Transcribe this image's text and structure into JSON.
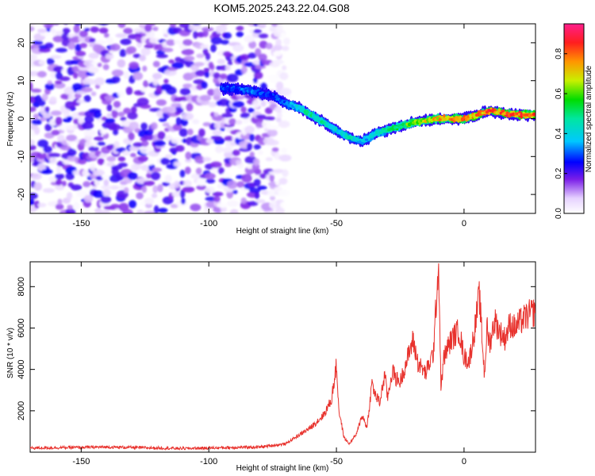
{
  "title": "KOM5.2025.243.22.04.G08",
  "chart_data": [
    {
      "type": "heatmap",
      "xlabel": "Height of straight line (km)",
      "ylabel": "Frequency (Hz)",
      "xlim": [
        -170,
        28
      ],
      "ylim": [
        -25,
        25
      ],
      "xticks": [
        -150,
        -100,
        -50,
        0
      ],
      "yticks": [
        20,
        10,
        0,
        -10,
        -20
      ],
      "colorbar": {
        "label": "Normalized spectral amplitude",
        "range": [
          0.0,
          0.95
        ],
        "ticks": [
          0.0,
          0.2,
          0.4,
          0.6,
          0.8
        ]
      },
      "ridge": {
        "description": "dominant signal frequency vs height",
        "x": [
          -95,
          -85,
          -75,
          -70,
          -65,
          -60,
          -55,
          -50,
          -45,
          -40,
          -35,
          -30,
          -20,
          -10,
          0,
          10,
          20,
          28
        ],
        "y": [
          8,
          7.5,
          6,
          4,
          3,
          1,
          -1,
          -3,
          -5,
          -6,
          -4,
          -3,
          -1,
          0,
          0,
          2,
          1,
          1
        ],
        "amplitude": [
          0.3,
          0.35,
          0.3,
          0.35,
          0.45,
          0.55,
          0.5,
          0.45,
          0.5,
          0.4,
          0.45,
          0.55,
          0.7,
          0.8,
          0.85,
          0.9,
          0.9,
          0.85
        ]
      },
      "noise_region": {
        "x_range": [
          -170,
          -70
        ],
        "amplitude_max": 0.25
      }
    },
    {
      "type": "line",
      "xlabel": "Height of straight line (km)",
      "ylabel": "SNR (10 * v/v)",
      "xlim": [
        -170,
        28
      ],
      "ylim": [
        0,
        9200
      ],
      "xticks": [
        -150,
        -100,
        -50,
        0
      ],
      "yticks": [
        2000,
        4000,
        6000,
        8000
      ],
      "color": "#e8322d",
      "series": [
        {
          "name": "SNR",
          "x": [
            -170,
            -140,
            -110,
            -80,
            -70,
            -65,
            -60,
            -55,
            -52,
            -50,
            -49,
            -47,
            -45,
            -42,
            -40,
            -38,
            -36,
            -35,
            -33,
            -31,
            -30,
            -28,
            -27,
            -25,
            -22,
            -20,
            -18,
            -15,
            -12,
            -10,
            -9,
            -8,
            -6,
            -4,
            -2,
            0,
            2,
            4,
            6,
            8,
            9,
            10,
            12,
            14,
            16,
            18,
            20,
            22,
            24,
            26,
            28
          ],
          "y": [
            200,
            250,
            180,
            250,
            400,
            800,
            1200,
            1800,
            2500,
            4200,
            2000,
            700,
            400,
            900,
            1800,
            1200,
            3400,
            2800,
            2400,
            3800,
            2600,
            4000,
            3600,
            3400,
            4600,
            5400,
            4300,
            3800,
            4800,
            9200,
            3000,
            4500,
            5200,
            5600,
            5900,
            4600,
            4400,
            5800,
            7600,
            3700,
            6000,
            5200,
            6400,
            5800,
            5500,
            6200,
            6000,
            6300,
            6500,
            6700,
            6800
          ]
        }
      ]
    }
  ]
}
